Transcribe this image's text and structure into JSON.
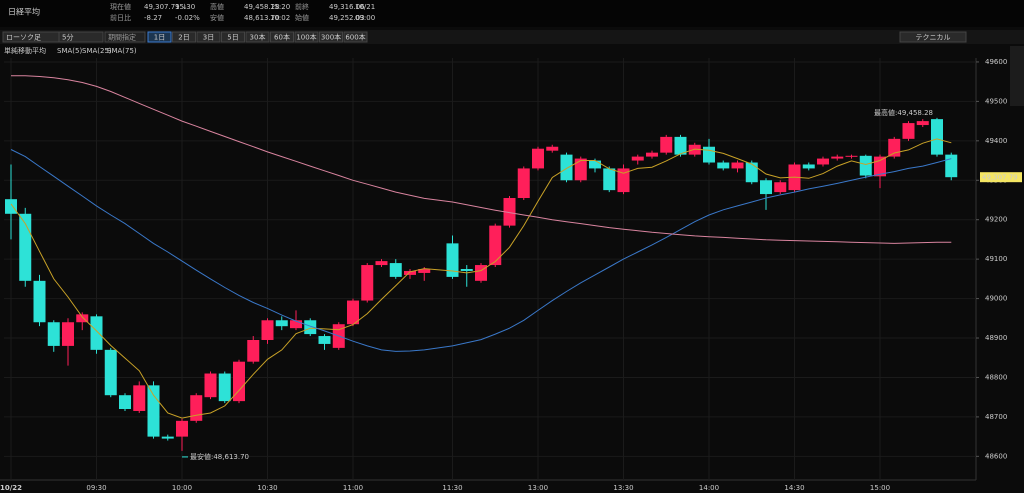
{
  "header": {
    "title": "日経平均",
    "quote": [
      {
        "label": "現在値",
        "value": "49,307.79 ↓",
        "extra": "15:30"
      },
      {
        "label": "前日比",
        "value": "-8.27",
        "extra": "-0.02%"
      },
      {
        "label": "高値",
        "value": "49,458.28",
        "extra": "15:20"
      },
      {
        "label": "安値",
        "value": "48,613.70",
        "extra": "10:02"
      },
      {
        "label": "前終",
        "value": "49,316.06",
        "extra": "10/21"
      },
      {
        "label": "始値",
        "value": "49,252.03",
        "extra": "09:00"
      }
    ]
  },
  "toolbar": {
    "chart_kind": "ローソク足",
    "interval": "5分",
    "period": "期間指定",
    "ranges": [
      "1日",
      "2日",
      "3日",
      "5日",
      "30本",
      "60本",
      "100本",
      "300本",
      "600本"
    ],
    "technical": "テクニカル"
  },
  "chart_data": {
    "type": "candlestick",
    "categories": [
      "10/22",
      null,
      null,
      null,
      null,
      null,
      "09:30",
      null,
      null,
      null,
      null,
      null,
      "10:00",
      null,
      null,
      null,
      null,
      null,
      "10:30",
      null,
      null,
      null,
      null,
      null,
      "11:00",
      null,
      null,
      null,
      null,
      null,
      "11:30",
      null,
      null,
      null,
      null,
      null,
      "13:00",
      null,
      null,
      null,
      null,
      null,
      "13:30",
      null,
      null,
      null,
      null,
      null,
      "14:00",
      null,
      null,
      null,
      null,
      null,
      "14:30",
      null,
      null,
      null,
      null,
      null,
      "15:00",
      null,
      null,
      null,
      null,
      null
    ],
    "open": [
      49252.03,
      49215,
      49045,
      48940,
      48880,
      48940,
      48955,
      48870,
      48755,
      48715,
      48780,
      48650,
      48650,
      48690,
      48750,
      48810,
      48740,
      48840,
      48895,
      48945,
      48925,
      48945,
      48905,
      48875,
      48935,
      48995,
      49085,
      49090,
      49060,
      49065,
      49140,
      49075,
      49045,
      49085,
      49185,
      49255,
      49330,
      49375,
      49365,
      49300,
      49350,
      49330,
      49270,
      49350,
      49360,
      49370,
      49410,
      49365,
      49385,
      49345,
      49330,
      49345,
      49300,
      49270,
      49275,
      49340,
      49340,
      49355,
      49360,
      49362,
      49310,
      49360,
      49405,
      49440,
      49455,
      49365
    ],
    "high": [
      49340,
      49230,
      49060,
      48945,
      48950,
      48965,
      48960,
      48875,
      48760,
      48790,
      48790,
      48655,
      48695,
      48760,
      48815,
      48815,
      48845,
      48905,
      48950,
      48955,
      48970,
      48950,
      48910,
      48940,
      49000,
      49090,
      49100,
      49100,
      49075,
      49080,
      49160,
      49085,
      49090,
      49190,
      49260,
      49335,
      49385,
      49390,
      49370,
      49360,
      49355,
      49335,
      49340,
      49365,
      49375,
      49415,
      49415,
      49395,
      49405,
      49350,
      49350,
      49350,
      49305,
      49300,
      49345,
      49345,
      49360,
      49365,
      49365,
      49365,
      49365,
      49410,
      49450,
      49455,
      49458.28,
      49370
    ],
    "low": [
      49150,
      49030,
      48930,
      48865,
      48830,
      48920,
      48860,
      48750,
      48715,
      48710,
      48645,
      48640,
      48613.7,
      48685,
      48745,
      48735,
      48735,
      48835,
      48885,
      48920,
      48920,
      48905,
      48870,
      48870,
      48930,
      48990,
      49080,
      49050,
      49050,
      49045,
      49050,
      49030,
      49040,
      49080,
      49180,
      49250,
      49325,
      49370,
      49295,
      49295,
      49320,
      49270,
      49265,
      49340,
      49355,
      49365,
      49360,
      49360,
      49340,
      49325,
      49320,
      49290,
      49225,
      49265,
      49270,
      49325,
      49335,
      49350,
      49355,
      49305,
      49280,
      49355,
      49400,
      49435,
      49360,
      49300
    ],
    "close": [
      49215,
      49045,
      48940,
      48880,
      48940,
      48960,
      48870,
      48755,
      48720,
      48780,
      48650,
      48645,
      48690,
      48755,
      48810,
      48740,
      48840,
      48895,
      48945,
      48930,
      48945,
      48910,
      48885,
      48935,
      48995,
      49085,
      49095,
      49055,
      49070,
      49075,
      49055,
      49070,
      49085,
      49185,
      49255,
      49330,
      49380,
      49385,
      49300,
      49355,
      49330,
      49275,
      49330,
      49360,
      49370,
      49410,
      49365,
      49390,
      49345,
      49330,
      49345,
      49295,
      49265,
      49295,
      49340,
      49330,
      49355,
      49360,
      49362,
      49312,
      49360,
      49405,
      49445,
      49450,
      49365,
      49307.79
    ],
    "up_color": "#ff1f5a",
    "down_color": "#2de2d7",
    "legend_title": "単純移動平均",
    "series": [
      {
        "name": "SMA(5)",
        "color": "#c9a227",
        "values": [
          49240,
          49190,
          49120,
          49050,
          49004,
          48953,
          48918,
          48881,
          48849,
          48817,
          48755,
          48710,
          48697,
          48704,
          48710,
          48728,
          48767,
          48808,
          48846,
          48870,
          48911,
          48925,
          48923,
          48921,
          48934,
          48962,
          48998,
          49033,
          49068,
          49076,
          49070,
          49065,
          49071,
          49094,
          49130,
          49185,
          49247,
          49307,
          49330,
          49350,
          49350,
          49329,
          49318,
          49330,
          49333,
          49349,
          49367,
          49379,
          49376,
          49368,
          49355,
          49341,
          49316,
          49306,
          49308,
          49305,
          49317,
          49336,
          49349,
          49340,
          49350,
          49369,
          49377,
          49394,
          49405,
          49395
        ]
      },
      {
        "name": "SMA(25)",
        "color": "#3a78c9",
        "values": [
          49378,
          49360,
          49335,
          49310,
          49285,
          49260,
          49235,
          49212,
          49190,
          49165,
          49140,
          49118,
          49095,
          49072,
          49050,
          49028,
          49008,
          48990,
          48975,
          48958,
          48943,
          48930,
          48918,
          48905,
          48892,
          48880,
          48870,
          48866,
          48867,
          48870,
          48880,
          48888,
          48896,
          48910,
          48925,
          48945,
          48970,
          48995,
          49018,
          49040,
          49060,
          49080,
          49100,
          49118,
          49136,
          49155,
          49175,
          49195,
          49212,
          49225,
          49235,
          49245,
          49255,
          49263,
          49270,
          49278,
          49285,
          49292,
          49300,
          49308,
          49315,
          49322,
          49330,
          49336,
          49345,
          49355
        ]
      },
      {
        "name": "SMA(75)",
        "color": "#d9849f",
        "values": [
          49565,
          49565,
          49563,
          49560,
          49555,
          49548,
          49538,
          49525,
          49510,
          49495,
          49480,
          49465,
          49450,
          49437,
          49424,
          49411,
          49398,
          49385,
          49372,
          49360,
          49348,
          49336,
          49324,
          49312,
          49300,
          49290,
          49280,
          49270,
          49262,
          49254,
          49245,
          49238,
          49231,
          49224,
          49218,
          49212,
          49206,
          49200,
          49195,
          49190,
          49185,
          49180,
          49176,
          49172,
          49168,
          49165,
          49162,
          49159,
          49157,
          49155,
          49153,
          49151,
          49149,
          49148,
          49147,
          49146,
          49145,
          49144,
          49143,
          49142,
          49141,
          49140,
          49141,
          49142,
          49143,
          49143
        ]
      }
    ],
    "high_label": "最高値:49,458.28",
    "low_label": "最安値:48,613.70",
    "last_label": {
      "value": 49307.79,
      "label": "49,307.79"
    },
    "ylim": [
      48540,
      49610
    ],
    "yticks": [
      48600,
      48700,
      48800,
      48900,
      49000,
      49100,
      49200,
      49300,
      49400,
      49500,
      49600
    ],
    "grid": true
  }
}
